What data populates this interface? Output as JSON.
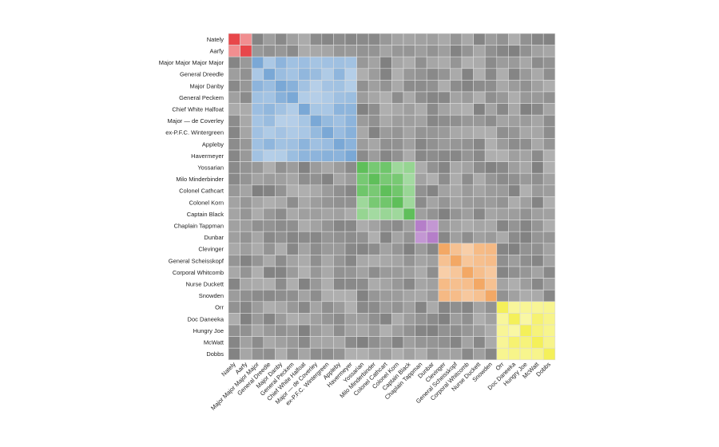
{
  "chart_data": {
    "type": "heatmap",
    "title": "",
    "xlabel": "",
    "ylabel": "",
    "labels": [
      "Nately",
      "Aarfy",
      "Major Major Major Major",
      "General Dreedle",
      "Major Danby",
      "General Peckem",
      "Chief White Halfoat",
      "Major — de Coverley",
      "ex-P.F.C. Wintergreen",
      "Appleby",
      "Havermeyer",
      "Yossarian",
      "Milo Minderbinder",
      "Colonel Cathcart",
      "Colonel Korn",
      "Captain Black",
      "Chaplain Tappman",
      "Dunbar",
      "Clevinger",
      "General Scheisskopf",
      "Corporal Whitcomb",
      "Nurse Duckett",
      "Snowden",
      "Orr",
      "Doc Daneeka",
      "Hungry Joe",
      "McWatt",
      "Dobbs"
    ],
    "groups": [
      {
        "start": 0,
        "end": 1,
        "color": "#e8474a"
      },
      {
        "start": 2,
        "end": 10,
        "color": "#7aa8d6"
      },
      {
        "start": 11,
        "end": 15,
        "color": "#5fbf5a"
      },
      {
        "start": 16,
        "end": 17,
        "color": "#b57ec9"
      },
      {
        "start": 18,
        "end": 22,
        "color": "#f3a865"
      },
      {
        "start": 23,
        "end": 27,
        "color": "#f4f05a"
      }
    ],
    "background_cell_color": "#9a9a9a",
    "grid": true,
    "legend": "none"
  }
}
